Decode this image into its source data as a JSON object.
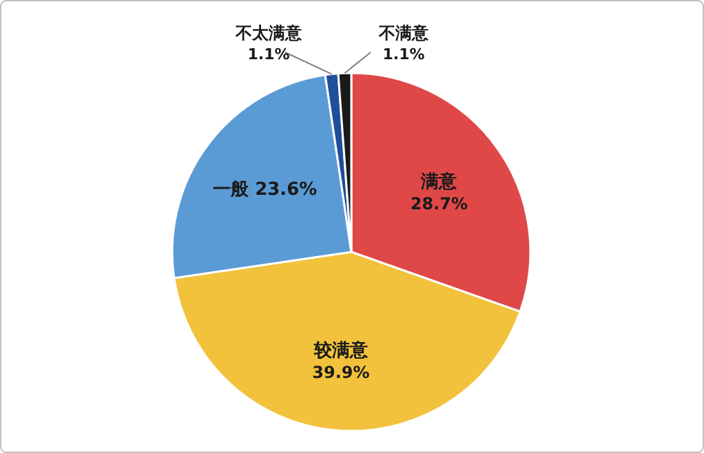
{
  "chart_data": {
    "type": "pie",
    "categories": [
      "满意",
      "较满意",
      "一般",
      "不太满意",
      "不满意"
    ],
    "values": [
      28.7,
      39.9,
      23.6,
      1.1,
      1.1
    ],
    "value_labels": [
      "28.7%",
      "39.9%",
      "23.6%",
      "1.1%",
      "1.1%"
    ],
    "colors": [
      "#e04848",
      "#f2c23c",
      "#5b9bd5",
      "#1f4e9a",
      "#1a1a1a"
    ],
    "legend": false
  }
}
